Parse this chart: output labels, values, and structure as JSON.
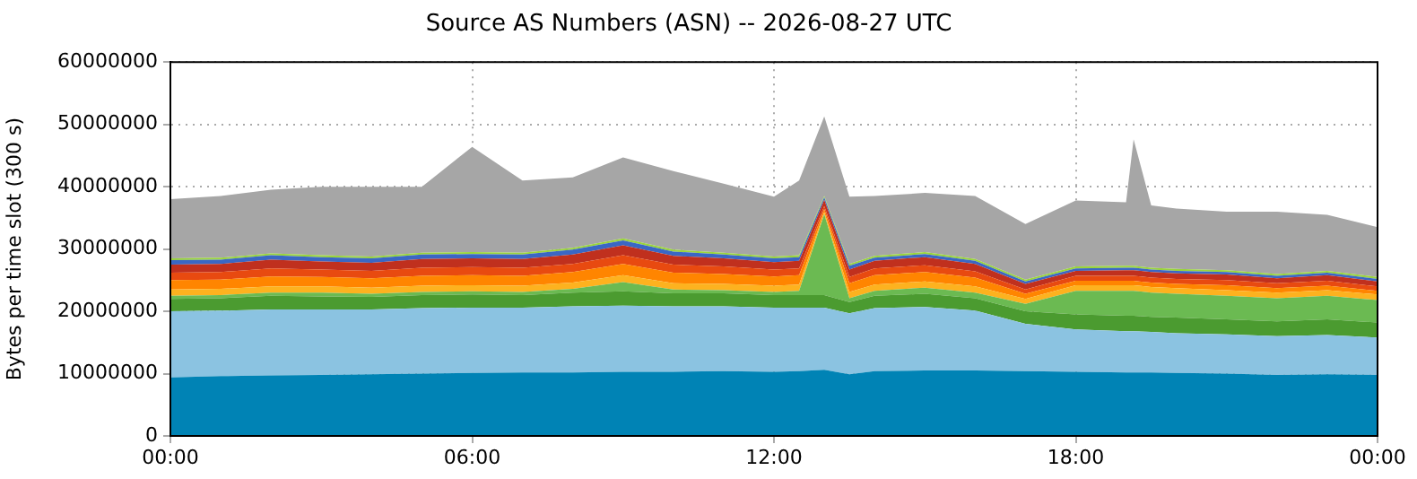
{
  "chart_data": {
    "type": "area",
    "stacked": true,
    "title": "Source AS Numbers (ASN) -- 2026-08-27 UTC",
    "ylabel": "Bytes per time slot (300 s)",
    "x": [
      0,
      1,
      2,
      3,
      4,
      5,
      6,
      7,
      8,
      9,
      10,
      11,
      12,
      12.5,
      13,
      13.5,
      14,
      15,
      16,
      17,
      18,
      19,
      19.15,
      19.5,
      20,
      21,
      22,
      23,
      24
    ],
    "xlim": [
      0,
      24
    ],
    "xticks": [
      {
        "value": 0,
        "label": "00:00"
      },
      {
        "value": 6,
        "label": "06:00"
      },
      {
        "value": 12,
        "label": "12:00"
      },
      {
        "value": 18,
        "label": "18:00"
      },
      {
        "value": 24,
        "label": "00:00"
      }
    ],
    "ylim": [
      0,
      60000000
    ],
    "yticks": [
      0,
      10000000,
      20000000,
      30000000,
      40000000,
      50000000,
      60000000
    ],
    "grid": true,
    "legend": false,
    "series": [
      {
        "color": "#0083b5",
        "values": [
          9400000.0,
          9600000.0,
          9700000.0,
          9800000.0,
          9900000.0,
          10000000.0,
          10100000.0,
          10200000.0,
          10200000.0,
          10300000.0,
          10300000.0,
          10400000.0,
          10300000.0,
          10400000.0,
          10600000.0,
          9900000.0,
          10400000.0,
          10500000.0,
          10500000.0,
          10400000.0,
          10300000.0,
          10200000.0,
          10200000.0,
          10200000.0,
          10100000.0,
          10000000.0,
          9800000.0,
          9900000.0,
          9800000.0
        ]
      },
      {
        "color": "#8bc3e1",
        "values": [
          10600000.0,
          10500000.0,
          10600000.0,
          10500000.0,
          10400000.0,
          10500000.0,
          10500000.0,
          10400000.0,
          10600000.0,
          10600000.0,
          10500000.0,
          10400000.0,
          10300000.0,
          10200000.0,
          10000000.0,
          9800000.0,
          10100000.0,
          10200000.0,
          9600000.0,
          7600000.0,
          6800000.0,
          6600000.0,
          6600000.0,
          6500000.0,
          6400000.0,
          6300000.0,
          6200000.0,
          6300000.0,
          6000000.0
        ]
      },
      {
        "color": "#4b9b30",
        "values": [
          2000000.0,
          2000000.0,
          2200000.0,
          2100000.0,
          2000000.0,
          2100000.0,
          2100000.0,
          2000000.0,
          2200000.0,
          2300000.0,
          2100000.0,
          2100000.0,
          2000000.0,
          2000000.0,
          2000000.0,
          1800000.0,
          2000000.0,
          2100000.0,
          2000000.0,
          2000000.0,
          2400000.0,
          2500000.0,
          2500000.0,
          2400000.0,
          2500000.0,
          2400000.0,
          2400000.0,
          2500000.0,
          2400000.0
        ]
      },
      {
        "color": "#6bba52",
        "values": [
          500000.0,
          500000.0,
          500000.0,
          600000.0,
          500000.0,
          500000.0,
          500000.0,
          500000.0,
          600000.0,
          1500000.0,
          600000.0,
          500000.0,
          500000.0,
          700000.0,
          13000000.0,
          600000.0,
          800000.0,
          1000000.0,
          900000.0,
          1200000.0,
          3800000.0,
          4000000.0,
          4000000.0,
          3900000.0,
          3800000.0,
          3800000.0,
          3700000.0,
          3800000.0,
          3600000.0
        ]
      },
      {
        "color": "#fdb21f",
        "values": [
          1000000.0,
          1000000.0,
          1000000.0,
          1000000.0,
          1000000.0,
          1000000.0,
          1000000.0,
          1000000.0,
          1000000.0,
          1100000.0,
          1000000.0,
          1000000.0,
          1000000.0,
          1000000.0,
          300000.0,
          1000000.0,
          1000000.0,
          1000000.0,
          1000000.0,
          800000.0,
          900000.0,
          900000.0,
          900000.0,
          900000.0,
          900000.0,
          900000.0,
          900000.0,
          900000.0,
          900000.0
        ]
      },
      {
        "color": "#ff8500",
        "values": [
          1500000.0,
          1500000.0,
          1600000.0,
          1500000.0,
          1500000.0,
          1600000.0,
          1600000.0,
          1600000.0,
          1700000.0,
          1800000.0,
          1700000.0,
          1600000.0,
          1500000.0,
          1500000.0,
          500000.0,
          1400000.0,
          1500000.0,
          1500000.0,
          1400000.0,
          800000.0,
          700000.0,
          700000.0,
          700000.0,
          700000.0,
          700000.0,
          800000.0,
          700000.0,
          700000.0,
          600000.0
        ]
      },
      {
        "color": "#e84a10",
        "values": [
          1200000.0,
          1200000.0,
          1300000.0,
          1200000.0,
          1200000.0,
          1300000.0,
          1300000.0,
          1300000.0,
          1300000.0,
          1400000.0,
          1300000.0,
          1200000.0,
          1100000.0,
          1100000.0,
          500000.0,
          1000000.0,
          1100000.0,
          1100000.0,
          1000000.0,
          700000.0,
          800000.0,
          800000.0,
          800000.0,
          800000.0,
          800000.0,
          800000.0,
          800000.0,
          800000.0,
          700000.0
        ]
      },
      {
        "color": "#c0301e",
        "values": [
          1300000.0,
          1300000.0,
          1400000.0,
          1300000.0,
          1300000.0,
          1400000.0,
          1400000.0,
          1400000.0,
          1500000.0,
          1600000.0,
          1400000.0,
          1300000.0,
          1200000.0,
          1200000.0,
          1000000.0,
          1200000.0,
          1200000.0,
          1300000.0,
          1200000.0,
          900000.0,
          800000.0,
          900000.0,
          900000.0,
          900000.0,
          900000.0,
          900000.0,
          800000.0,
          900000.0,
          800000.0
        ]
      },
      {
        "color": "#3a67c4",
        "values": [
          700000.0,
          700000.0,
          700000.0,
          700000.0,
          700000.0,
          700000.0,
          700000.0,
          700000.0,
          800000.0,
          800000.0,
          700000.0,
          600000.0,
          600000.0,
          600000.0,
          400000.0,
          600000.0,
          500000.0,
          500000.0,
          500000.0,
          400000.0,
          400000.0,
          400000.0,
          400000.0,
          400000.0,
          400000.0,
          400000.0,
          400000.0,
          400000.0,
          400000.0
        ]
      },
      {
        "color": "#9ad43c",
        "values": [
          300000.0,
          300000.0,
          300000.0,
          300000.0,
          300000.0,
          300000.0,
          300000.0,
          300000.0,
          300000.0,
          300000.0,
          300000.0,
          300000.0,
          300000.0,
          300000.0,
          200000.0,
          300000.0,
          300000.0,
          300000.0,
          300000.0,
          300000.0,
          300000.0,
          300000.0,
          300000.0,
          300000.0,
          300000.0,
          300000.0,
          300000.0,
          300000.0,
          300000.0
        ]
      },
      {
        "color": "#a6a6a6",
        "values": [
          9500000.0,
          9900000.0,
          10200000.0,
          11000000.0,
          11200000.0,
          10600000.0,
          16900000.0,
          11600000.0,
          11300000.0,
          13000000.0,
          12600000.0,
          11100000.0,
          9600000.0,
          12000000.0,
          12800000.0,
          10800000.0,
          9600000.0,
          9500000.0,
          10100000.0,
          8900000.0,
          10600000.0,
          10200000.0,
          20300000.0,
          10000000.0,
          9700000.0,
          9400000.0,
          10000000.0,
          9000000.0,
          8000000.0
        ]
      }
    ]
  }
}
